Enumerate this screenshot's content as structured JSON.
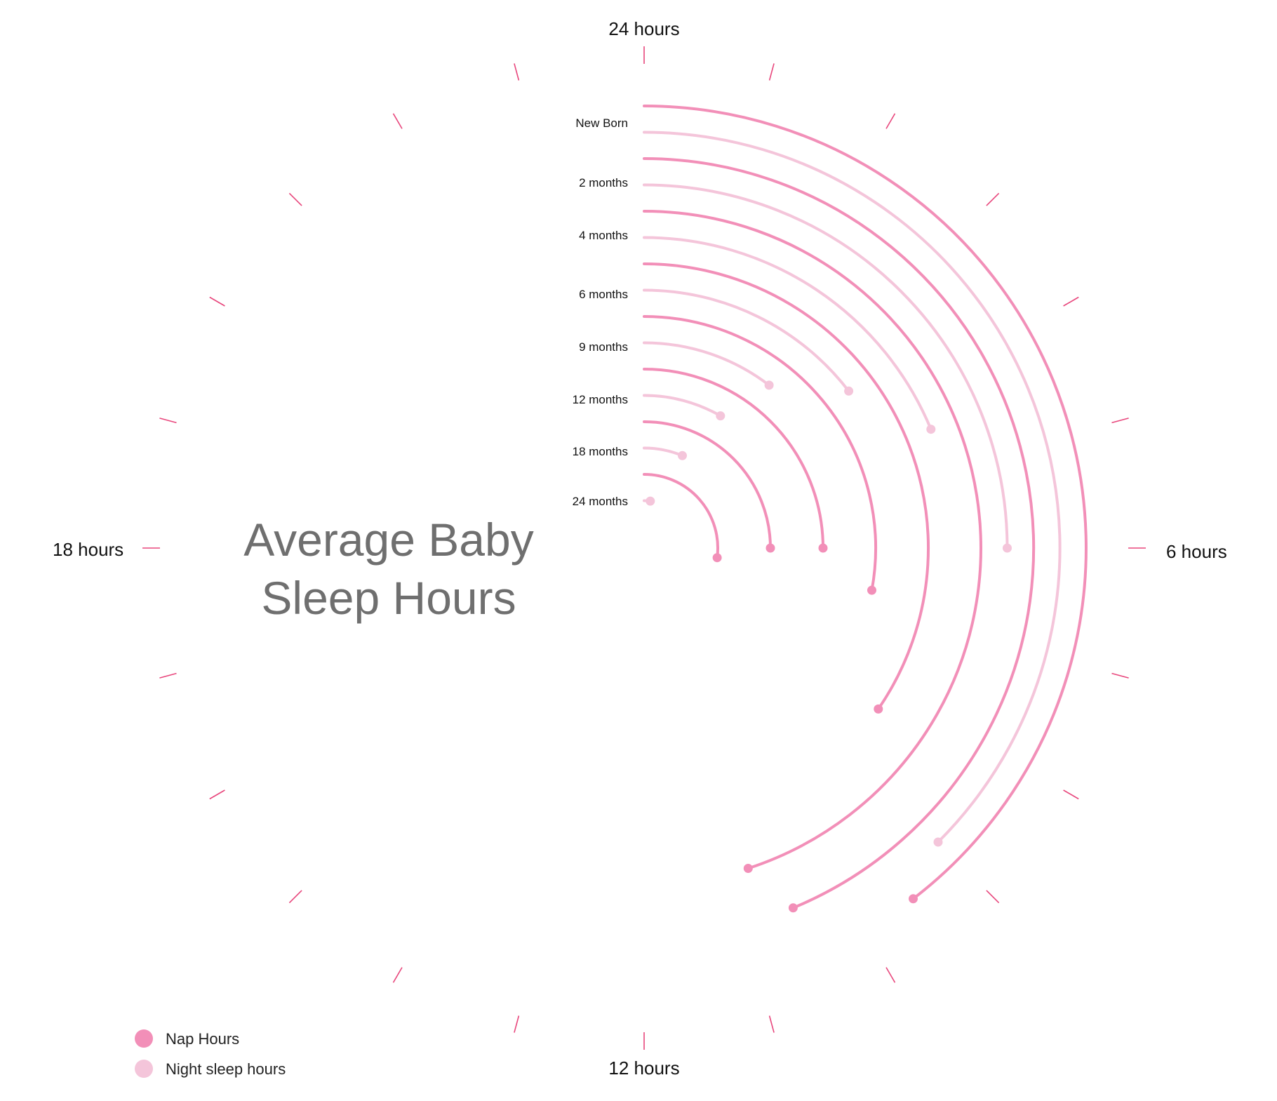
{
  "colors": {
    "nap": "#f28fb8",
    "night": "#f4c5da",
    "tick": "#e8467c",
    "title": "#6f6f6f"
  },
  "title": {
    "line1": "Average Baby",
    "line2": "Sleep Hours"
  },
  "hour_labels": {
    "top": "24 hours",
    "right": "6 hours",
    "bottom": "12 hours",
    "left": "18 hours"
  },
  "legend": {
    "nap": "Nap Hours",
    "night": "Night sleep hours"
  },
  "chart_data": {
    "type": "radial-bar",
    "title": "Average Baby Sleep Hours",
    "axis": {
      "unit": "hours",
      "min": 0,
      "max": 24,
      "ticks": 24,
      "labeled": [
        "24 hours",
        "6 hours",
        "12 hours",
        "18 hours"
      ]
    },
    "categories": [
      "New Born",
      "2 months",
      "4 months",
      "6 months",
      "9 months",
      "12 months",
      "18 months",
      "24 months"
    ],
    "series": [
      {
        "name": "Nap Hours",
        "values": [
          9.5,
          10.5,
          10.8,
          8.3,
          6.7,
          6.0,
          6.0,
          6.5
        ]
      },
      {
        "name": "Night sleep hours",
        "values": [
          9.0,
          6.0,
          4.5,
          3.5,
          2.5,
          2.0,
          1.5,
          0.5
        ]
      }
    ]
  }
}
